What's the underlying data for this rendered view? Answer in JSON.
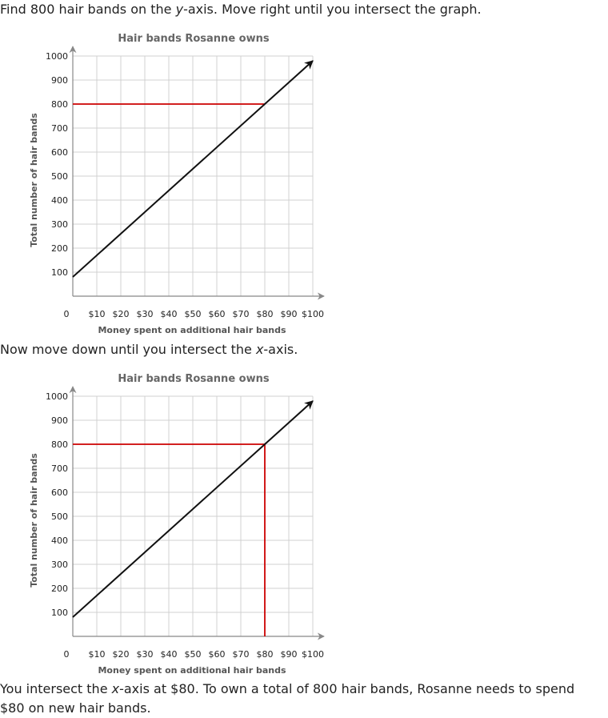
{
  "text": {
    "p1_before": "Find 800 hair bands on the ",
    "p1_var": "y",
    "p1_after": "-axis. Move right until you intersect the graph.",
    "p2_before": "Now move down until you intersect the ",
    "p2_var": "x",
    "p2_after": "-axis.",
    "p3_before": "You intersect the ",
    "p3_var": "x",
    "p3_after": "-axis at $80. To own a total of 800 hair bands, Rosanne needs to spend $80 on new hair bands."
  },
  "colors": {
    "line": "#111111",
    "highlight": "#cc0000",
    "grid": "#d0d0d0",
    "axis": "#888888"
  },
  "chart_data": [
    {
      "type": "line",
      "title": "Hair bands Rosanne owns",
      "xlabel": "Money spent on additional hair bands",
      "ylabel": "Total number of hair bands",
      "xlim": [
        0,
        100
      ],
      "ylim": [
        0,
        1000
      ],
      "x_ticks": [
        10,
        20,
        30,
        40,
        50,
        60,
        70,
        80,
        90,
        100
      ],
      "x_tick_labels": [
        "$10",
        "$20",
        "$30",
        "$40",
        "$50",
        "$60",
        "$70",
        "$80",
        "$90",
        "$100"
      ],
      "y_ticks": [
        100,
        200,
        300,
        400,
        500,
        600,
        700,
        800,
        900,
        1000
      ],
      "y_tick_labels": [
        "100",
        "200",
        "300",
        "400",
        "500",
        "600",
        "700",
        "800",
        "900",
        "1000"
      ],
      "origin_label": "0",
      "grid": true,
      "series": [
        {
          "x": [
            0,
            100
          ],
          "y": [
            80,
            980
          ]
        }
      ],
      "guides": [
        {
          "from": [
            0,
            800
          ],
          "to": [
            80,
            800
          ]
        }
      ]
    },
    {
      "type": "line",
      "title": "Hair bands Rosanne owns",
      "xlabel": "Money spent on additional hair bands",
      "ylabel": "Total number of hair bands",
      "xlim": [
        0,
        100
      ],
      "ylim": [
        0,
        1000
      ],
      "x_ticks": [
        10,
        20,
        30,
        40,
        50,
        60,
        70,
        80,
        90,
        100
      ],
      "x_tick_labels": [
        "$10",
        "$20",
        "$30",
        "$40",
        "$50",
        "$60",
        "$70",
        "$80",
        "$90",
        "$100"
      ],
      "y_ticks": [
        100,
        200,
        300,
        400,
        500,
        600,
        700,
        800,
        900,
        1000
      ],
      "y_tick_labels": [
        "100",
        "200",
        "300",
        "400",
        "500",
        "600",
        "700",
        "800",
        "900",
        "1000"
      ],
      "origin_label": "0",
      "grid": true,
      "series": [
        {
          "x": [
            0,
            100
          ],
          "y": [
            80,
            980
          ]
        }
      ],
      "guides": [
        {
          "from": [
            0,
            800
          ],
          "to": [
            80,
            800
          ]
        },
        {
          "from": [
            80,
            800
          ],
          "to": [
            80,
            0
          ]
        }
      ]
    }
  ]
}
